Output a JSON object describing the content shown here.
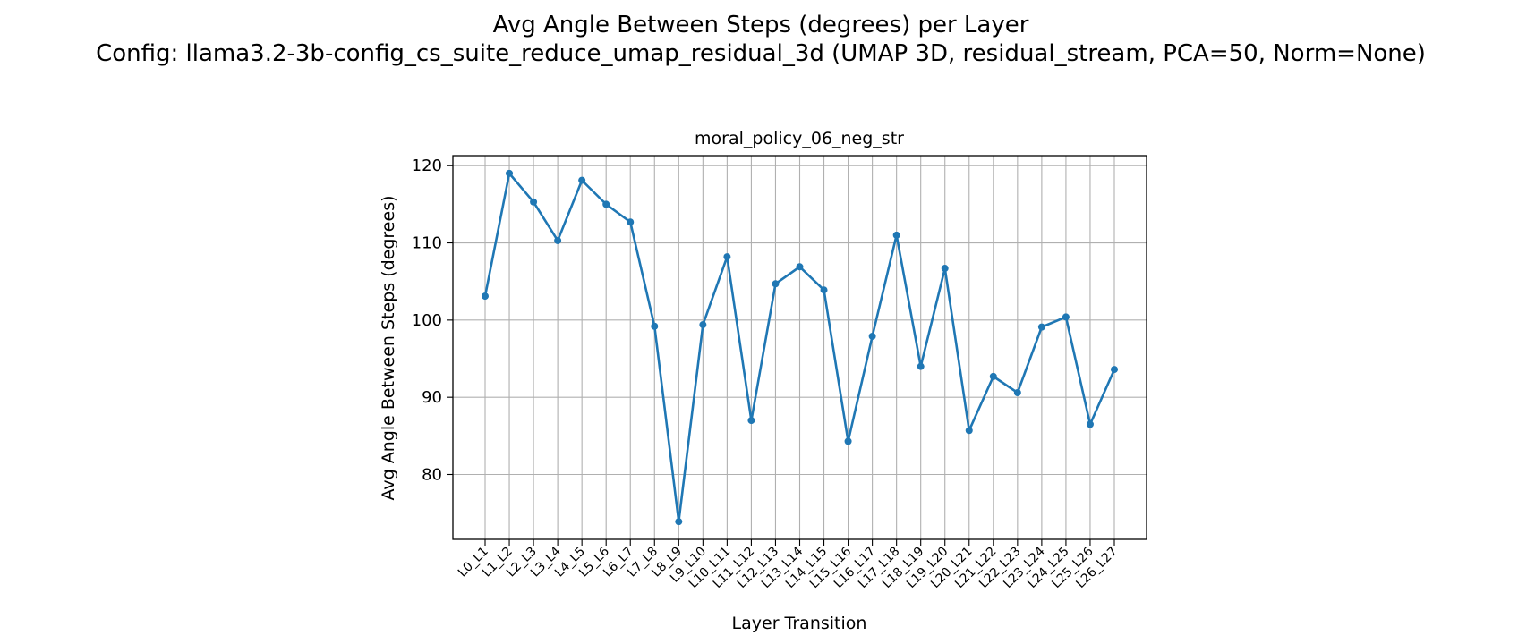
{
  "figure": {
    "suptitle_line1": "Avg Angle Between Steps (degrees) per Layer",
    "suptitle_line2": "Config: llama3.2-3b-config_cs_suite_reduce_umap_residual_3d (UMAP 3D, residual_stream, PCA=50, Norm=None)"
  },
  "chart_data": {
    "type": "line",
    "title": "moral_policy_06_neg_str",
    "xlabel": "Layer Transition",
    "ylabel": "Avg Angle Between Steps (degrees)",
    "categories": [
      "L0_L1",
      "L1_L2",
      "L2_L3",
      "L3_L4",
      "L4_L5",
      "L5_L6",
      "L6_L7",
      "L7_L8",
      "L8_L9",
      "L9_L10",
      "L10_L11",
      "L11_L12",
      "L12_L13",
      "L13_L14",
      "L14_L15",
      "L15_L16",
      "L16_L17",
      "L17_L18",
      "L18_L19",
      "L19_L20",
      "L20_L21",
      "L21_L22",
      "L22_L23",
      "L23_L24",
      "L24_L25",
      "L25_L26",
      "L26_L27"
    ],
    "series": [
      {
        "values": [
          103.1,
          119.0,
          115.3,
          110.3,
          118.1,
          115.0,
          112.7,
          99.2,
          73.9,
          99.4,
          108.2,
          87.0,
          104.7,
          106.9,
          103.9,
          84.3,
          97.9,
          111.0,
          94.0,
          106.7,
          85.7,
          92.7,
          90.6,
          99.1,
          100.4,
          86.5,
          93.6
        ],
        "color": "#1f77b4"
      }
    ],
    "yticks": [
      80,
      90,
      100,
      110,
      120
    ],
    "ylim": [
      71.6,
      121.3
    ],
    "grid": true,
    "legend": "none"
  }
}
